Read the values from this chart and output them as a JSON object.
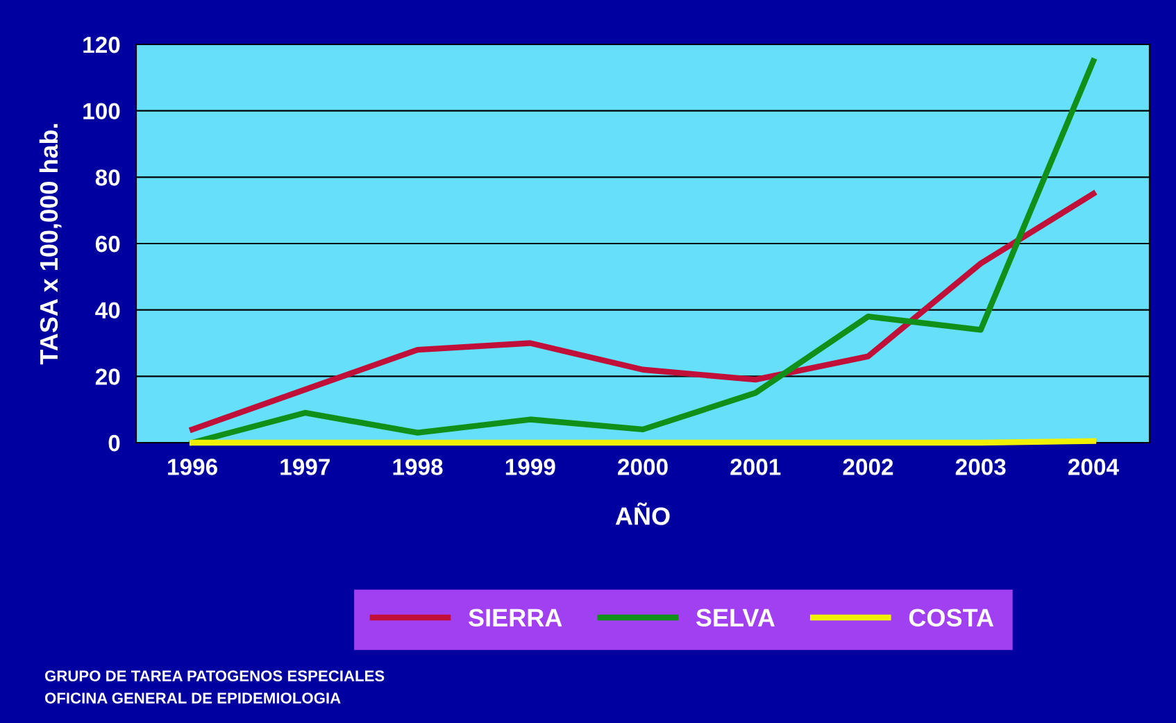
{
  "chart_data": {
    "type": "line",
    "xlabel": "AÑO",
    "ylabel": "TASA x 100,000 hab.",
    "categories": [
      "1996",
      "1997",
      "1998",
      "1999",
      "2000",
      "2001",
      "2002",
      "2003",
      "2004"
    ],
    "series": [
      {
        "name": "SIERRA",
        "color": "#c0103a",
        "values": [
          4,
          16,
          28,
          30,
          22,
          19,
          26,
          54,
          75
        ]
      },
      {
        "name": "SELVA",
        "color": "#109018",
        "values": [
          0,
          9,
          3,
          7,
          4,
          15,
          38,
          34,
          115
        ]
      },
      {
        "name": "COSTA",
        "color": "#f0f000",
        "values": [
          0,
          0,
          0,
          0,
          0,
          0,
          0,
          0,
          0.5
        ]
      }
    ],
    "ylim": [
      0,
      120
    ],
    "yticks": [
      0,
      20,
      40,
      60,
      80,
      100,
      120
    ],
    "grid": "y",
    "legend": "bottom",
    "marker": "none",
    "line_style": "solid",
    "annotations": [
      "GRUPO DE TAREA PATOGENOS ESPECIALES",
      "OFICINA GENERAL DE EPIDEMIOLOGIA"
    ]
  }
}
